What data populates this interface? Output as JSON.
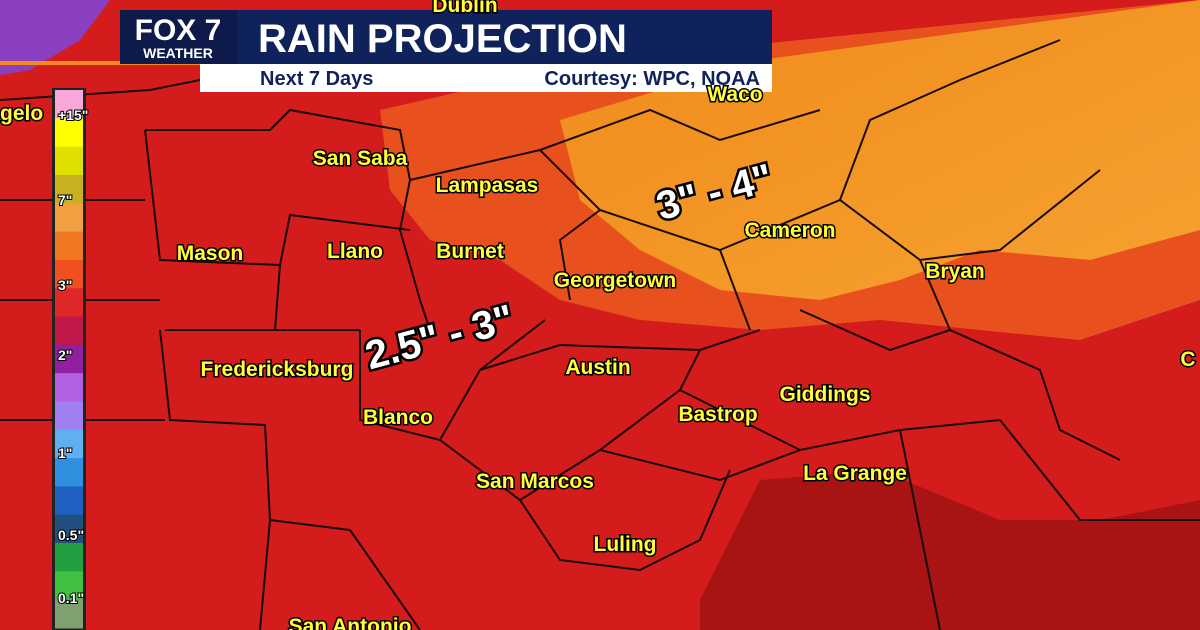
{
  "header": {
    "logo": "FOX 7",
    "logo_sub": "WEATHER",
    "title": "RAIN PROJECTION",
    "subtitle": "Next 7 Days",
    "credit": "Courtesy: WPC, NOAA"
  },
  "legend": {
    "labels": [
      "+15\"",
      "7\"",
      "3\"",
      "2\"",
      "1\"",
      "0.5\"",
      "0.1\""
    ]
  },
  "cities": [
    "Dublin",
    "Waco",
    "gelo",
    "San Saba",
    "Lampasas",
    "Mason",
    "Llano",
    "Burnet",
    "Georgetown",
    "Cameron",
    "Bryan",
    "Fredericksburg",
    "Austin",
    "Giddings",
    "Bastrop",
    "Blanco",
    "San Marcos",
    "La Grange",
    "Luling",
    "San Antonio",
    "C"
  ],
  "annotations": [
    "3\" - 4\"",
    "2.5\" - 3\""
  ]
}
